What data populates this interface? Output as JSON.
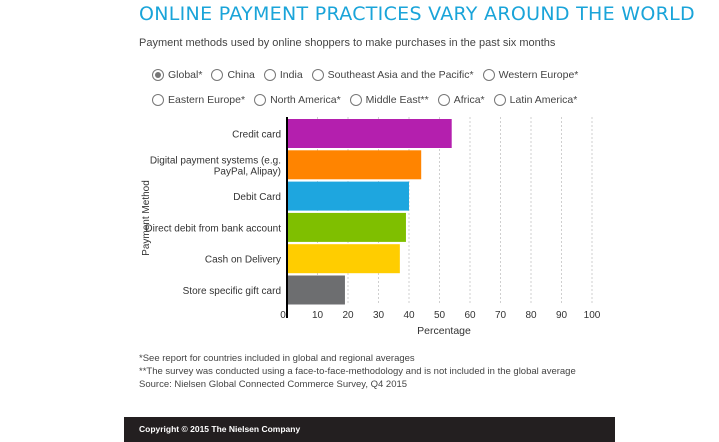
{
  "header": {
    "title": "ONLINE PAYMENT PRACTICES VARY AROUND THE WORLD",
    "subtitle": "Payment methods used by online shoppers to make purchases in the past six months"
  },
  "filters": {
    "row1": [
      {
        "label": "Global*",
        "selected": true
      },
      {
        "label": "China",
        "selected": false
      },
      {
        "label": "India",
        "selected": false
      },
      {
        "label": "Southeast Asia and the Pacific*",
        "selected": false
      },
      {
        "label": "Western Europe*",
        "selected": false
      }
    ],
    "row2": [
      {
        "label": "Eastern Europe*",
        "selected": false
      },
      {
        "label": "North America*",
        "selected": false
      },
      {
        "label": "Middle East**",
        "selected": false
      },
      {
        "label": "Africa*",
        "selected": false
      },
      {
        "label": "Latin America*",
        "selected": false
      }
    ]
  },
  "chart_data": {
    "type": "bar",
    "orientation": "horizontal",
    "categories": [
      "Credit card",
      "Digital payment systems (e.g. PayPal, Alipay)",
      "Debit Card",
      "Direct debit from bank account",
      "Cash on Delivery",
      "Store specific gift card"
    ],
    "category_lines": [
      [
        "Credit card"
      ],
      [
        "Digital payment systems (e.g.",
        "PayPal, Alipay)"
      ],
      [
        "Debit Card"
      ],
      [
        "Direct debit from bank account"
      ],
      [
        "Cash on Delivery"
      ],
      [
        "Store specific gift card"
      ]
    ],
    "values": [
      54,
      44,
      40,
      39,
      37,
      19
    ],
    "colors": [
      "#b41fae",
      "#ff8400",
      "#1ea6df",
      "#7fbf00",
      "#ffcd00",
      "#6d6e70"
    ],
    "xlabel": "Percentage",
    "ylabel": "Payment Method",
    "xlim": [
      0,
      100
    ],
    "xticks": [
      0,
      10,
      20,
      30,
      40,
      50,
      60,
      70,
      80,
      90,
      100
    ],
    "grid": true
  },
  "footnotes": [
    "*See report for countries included in global and regional averages",
    "**The survey was conducted using a face-to-face-methodology and is not included in the global average",
    "Source: Nielsen Global Connected Commerce Survey, Q4 2015"
  ],
  "footer": {
    "copyright": "Copyright © 2015 The Nielsen Company"
  }
}
